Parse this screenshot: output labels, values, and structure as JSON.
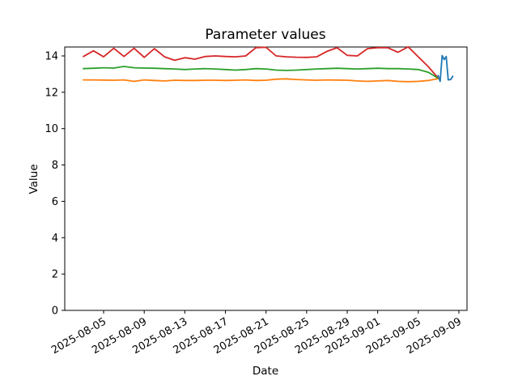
{
  "chart_data": {
    "type": "line",
    "title": "Parameter values",
    "xlabel": "Date",
    "ylabel": "Value",
    "grid": false,
    "legend": null,
    "background_color": "#ffffff",
    "spine_color": "#000000",
    "x_axis": {
      "start_date": "2025-08-03",
      "unit": "days since 2025-08-03",
      "tick_labels": [
        "2025-08-05",
        "2025-08-09",
        "2025-08-13",
        "2025-08-17",
        "2025-08-21",
        "2025-08-25",
        "2025-08-29",
        "2025-09-01",
        "2025-09-05",
        "2025-09-09"
      ],
      "tick_day_offsets": [
        2,
        6,
        10,
        14,
        18,
        22,
        26,
        29,
        33,
        37
      ],
      "xlim_day_offsets": [
        -1.83,
        37.8
      ],
      "tick_rotation_deg": 30
    },
    "y_axis": {
      "ticks": [
        0,
        2,
        4,
        6,
        8,
        10,
        12,
        14
      ],
      "ylim": [
        0,
        14.49
      ]
    },
    "series": [
      {
        "name": "red",
        "color": "#d62728",
        "x0": 0,
        "dx": 1,
        "values": [
          13.97,
          14.28,
          13.95,
          14.42,
          13.97,
          14.42,
          13.92,
          14.4,
          13.95,
          13.76,
          13.9,
          13.82,
          13.97,
          14.0,
          13.97,
          13.95,
          14.0,
          14.45,
          14.47,
          14.0,
          13.95,
          13.93,
          13.92,
          13.95,
          14.25,
          14.45,
          14.03,
          14.0,
          14.4,
          14.45,
          14.45,
          14.2,
          14.5,
          13.95,
          13.4,
          12.75
        ]
      },
      {
        "name": "green",
        "color": "#2ca02c",
        "x0": 0,
        "dx": 1,
        "values": [
          13.3,
          13.32,
          13.35,
          13.33,
          13.42,
          13.35,
          13.33,
          13.32,
          13.3,
          13.28,
          13.25,
          13.28,
          13.3,
          13.28,
          13.25,
          13.22,
          13.25,
          13.3,
          13.28,
          13.22,
          13.2,
          13.22,
          13.25,
          13.28,
          13.3,
          13.32,
          13.3,
          13.28,
          13.3,
          13.32,
          13.3,
          13.3,
          13.28,
          13.25,
          13.1,
          12.75
        ]
      },
      {
        "name": "orange",
        "color": "#ff7f0e",
        "x0": 0,
        "dx": 1,
        "values": [
          12.68,
          12.68,
          12.67,
          12.66,
          12.68,
          12.6,
          12.68,
          12.65,
          12.62,
          12.66,
          12.65,
          12.65,
          12.66,
          12.66,
          12.65,
          12.66,
          12.68,
          12.65,
          12.66,
          12.72,
          12.74,
          12.7,
          12.68,
          12.66,
          12.68,
          12.67,
          12.66,
          12.62,
          12.6,
          12.62,
          12.65,
          12.6,
          12.58,
          12.6,
          12.65,
          12.75
        ]
      },
      {
        "name": "blue",
        "color": "#1f77b4",
        "x": [
          34.95,
          35.15,
          35.35,
          35.55,
          35.75,
          35.95,
          36.2,
          36.4
        ],
        "values": [
          12.92,
          12.6,
          14.02,
          13.8,
          13.97,
          12.68,
          12.7,
          12.88
        ]
      }
    ]
  }
}
